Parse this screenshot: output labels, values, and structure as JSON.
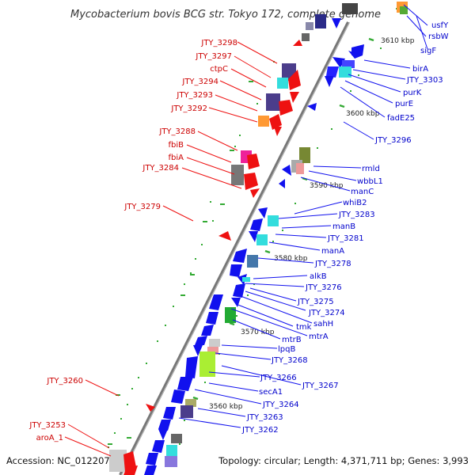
{
  "title": "Mycobacterium bovis BCG str. Tokyo 172, complete genome",
  "footer": {
    "accession": "Accession: NC_012207",
    "summary": "Topology: circular; Length: 4,371,711 bp; Genes: 3,993"
  },
  "colors": {
    "backbone": "#888888",
    "left_labels": "#cc0000",
    "right_labels": "#0000cc",
    "reverse_strand_gene": "#ee1111",
    "forward_strand_gene": "#1111ee",
    "tick": "#33aa33"
  },
  "scale_labels": [
    "3610 kbp",
    "3600 kbp",
    "3590 kbp",
    "3580 kbp",
    "3570 kbp",
    "3560 kbp"
  ],
  "left_labels": [
    "JTY_3298",
    "JTY_3297",
    "ctpC",
    "JTY_3294",
    "JTY_3293",
    "JTY_3292",
    "JTY_3288",
    "fbiB",
    "fbiA",
    "JTY_3284",
    "JTY_3279",
    "JTY_3260",
    "JTY_3253",
    "aroA_1"
  ],
  "right_labels": [
    "usfY",
    "rsbW",
    "sigF",
    "birA",
    "JTY_3303",
    "purK",
    "purE",
    "fadE25",
    "JTY_3296",
    "rmld",
    "wbbL1",
    "manC",
    "whiB2",
    "JTY_3283",
    "manB",
    "JTY_3281",
    "manA",
    "JTY_3278",
    "alkB",
    "JTY_3276",
    "JTY_3275",
    "JTY_3274",
    "sahH",
    "tmk",
    "mtrA",
    "mtrB",
    "lpqB",
    "JTY_3268",
    "JTY_3266",
    "JTY_3267",
    "secA1",
    "JTY_3264",
    "JTY_3263",
    "JTY_3262"
  ]
}
